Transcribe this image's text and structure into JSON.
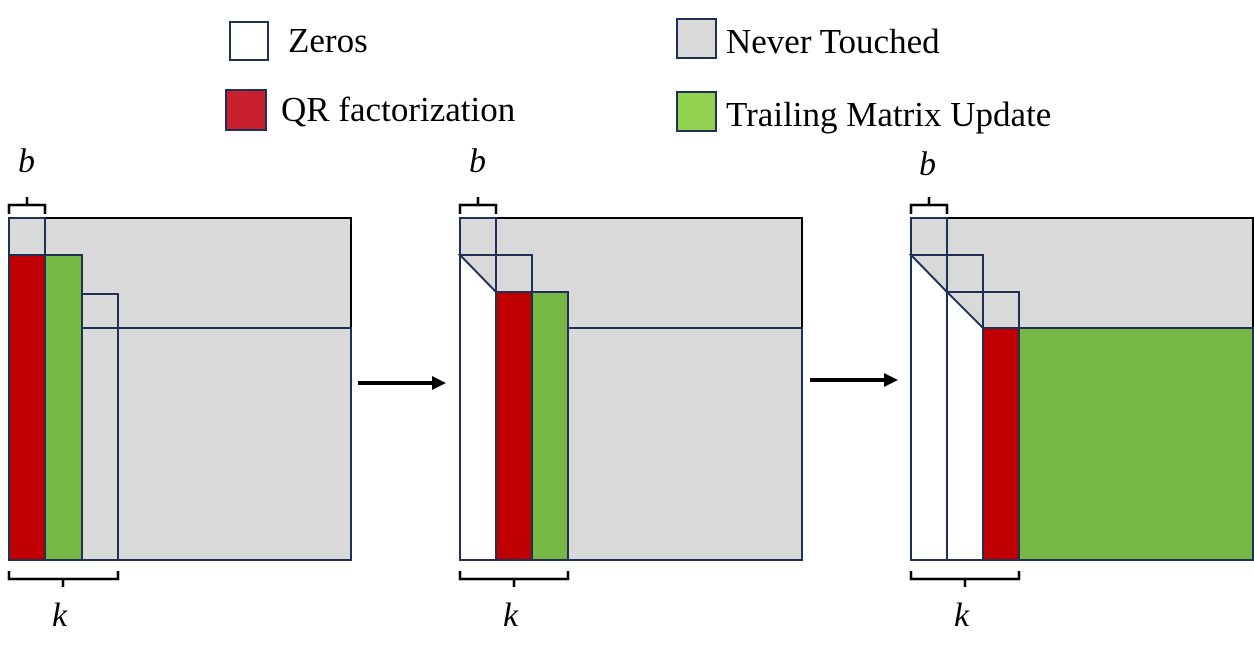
{
  "legend": {
    "zeros": {
      "label": "Zeros",
      "color": "#ffffff"
    },
    "qr": {
      "label": "QR factorization",
      "color": "#c8202f"
    },
    "never": {
      "label": "Never Touched",
      "color": "#d9d9d9"
    },
    "trailing": {
      "label": "Trailing Matrix Update",
      "color": "#92d050"
    }
  },
  "colors": {
    "red": "#c00000",
    "green": "#76b843",
    "gray": "#d9d9d9",
    "outline": "#1f3056"
  },
  "labels": {
    "b": "b",
    "k": "k"
  }
}
